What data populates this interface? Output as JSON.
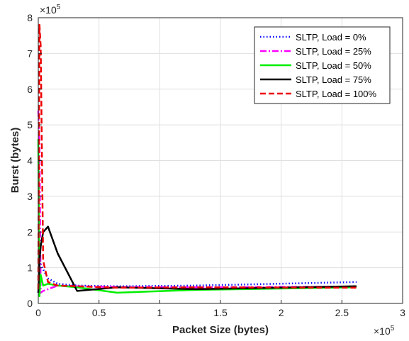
{
  "chart_data": {
    "type": "line",
    "title": "",
    "xlabel": "Packet Size (bytes)",
    "ylabel": "Burst (bytes)",
    "x_multiplier": "×10",
    "x_exponent": "5",
    "y_multiplier": "×10",
    "y_exponent": "5",
    "xlim": [
      0,
      300000
    ],
    "ylim": [
      0,
      800000
    ],
    "x_ticks": [
      0,
      50000,
      100000,
      150000,
      200000,
      250000,
      300000
    ],
    "x_tick_labels": [
      "0",
      "0.5",
      "1",
      "1.5",
      "2",
      "2.5",
      "3"
    ],
    "y_ticks": [
      0,
      100000,
      200000,
      300000,
      400000,
      500000,
      600000,
      700000,
      800000
    ],
    "y_tick_labels": [
      "0",
      "1",
      "2",
      "3",
      "4",
      "5",
      "6",
      "7",
      "8"
    ],
    "grid": true,
    "legend_position": "top-right",
    "series": [
      {
        "name": "SLTP, Load = 0%",
        "color": "#0000ff",
        "dash": "dotted",
        "x": [
          0,
          1000,
          2000,
          4000,
          8000,
          16000,
          32000,
          65000,
          130000,
          262000
        ],
        "y": [
          30000,
          100000,
          110000,
          95000,
          70000,
          55000,
          50000,
          48000,
          50000,
          60000
        ]
      },
      {
        "name": "SLTP, Load = 25%",
        "color": "#ff00ff",
        "dash": "dashdot",
        "x": [
          0,
          1000,
          2000,
          4000,
          8000,
          16000,
          32000,
          65000,
          130000,
          262000
        ],
        "y": [
          540000,
          450000,
          30000,
          35000,
          40000,
          50000,
          48000,
          46000,
          45000,
          47000
        ]
      },
      {
        "name": "SLTP, Load = 50%",
        "color": "#00ee00",
        "dash": "solid",
        "x": [
          0,
          1000,
          2000,
          4000,
          8000,
          16000,
          32000,
          65000,
          130000,
          262000
        ],
        "y": [
          460000,
          20000,
          80000,
          50000,
          55000,
          50000,
          45000,
          30000,
          38000,
          45000
        ]
      },
      {
        "name": "SLTP, Load = 75%",
        "color": "#000000",
        "dash": "solid",
        "x": [
          0,
          1000,
          2000,
          4000,
          8000,
          16000,
          32000,
          65000,
          130000,
          262000
        ],
        "y": [
          30000,
          120000,
          160000,
          200000,
          215000,
          140000,
          35000,
          45000,
          40000,
          48000
        ]
      },
      {
        "name": "SLTP, Load = 100%",
        "color": "#ee0000",
        "dash": "dashed",
        "x": [
          0,
          1000,
          2000,
          4000,
          8000,
          16000,
          32000,
          65000,
          130000,
          262000
        ],
        "y": [
          40000,
          780000,
          720000,
          120000,
          60000,
          50000,
          48000,
          44000,
          45000,
          44000
        ]
      }
    ]
  }
}
